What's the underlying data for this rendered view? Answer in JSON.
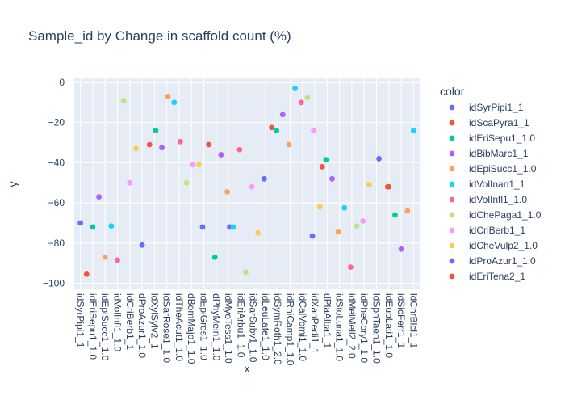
{
  "chart_data": {
    "type": "scatter",
    "title": "Sample_id by Change in scaffold count (%)",
    "xlabel": "x",
    "ylabel": "y",
    "legend_title": "color",
    "legend_position": "right",
    "grid": true,
    "ylim": [
      -103,
      2
    ],
    "yticks": [
      0,
      -20,
      -40,
      -60,
      -80,
      -100
    ],
    "x_tick_labels": [
      "idSyrPipi1_1",
      "idEriSepu1_1.0",
      "idEpiSucc1_1.0",
      "idVolInfl1_1.0",
      "idCriBerb1_1",
      "dProAzur1_1.0",
      "idXylSylv2_1",
      "idSarRose1_1.0",
      "idTheAcut1_1.0",
      "dBomMajo1_1.0",
      "idEpiGros1_1.0",
      "dPhyMein1_1.0",
      "idMyoTess1_1.0",
      "idEriArbu1_1.0",
      "idSarSubv1_1.0",
      "idLeuLate1_1.0",
      "idSymRoth1_2.0",
      "idRhiCamp1_1.0",
      "idCalVomi1_1.0",
      "idXanPedi1_1",
      "dPlaAlba1_1",
      "idStoLuna1_1.0",
      "idMelMell2_2.0",
      "idPheCory1_1.0",
      "idSphTaen1_1.0",
      "idEupLati1_1.0",
      "idSicFerr1_1",
      "idChrBici1_1"
    ],
    "series": [
      {
        "name": "idSyrPipi1_1",
        "color": "#636efa",
        "x": [
          0,
          12.1,
          18.8,
          24.2
        ],
        "y": [
          -70,
          -72,
          -76.5,
          -38
        ]
      },
      {
        "name": "idScaPyra1_1",
        "color": "#EF553B",
        "x": [
          0.5,
          5.6,
          10.4,
          15.5,
          25
        ],
        "y": [
          -95.5,
          -31,
          -31,
          -22.5,
          -52
        ]
      },
      {
        "name": "idEriSepu1_1.0",
        "color": "#00cc96",
        "x": [
          1,
          6.1,
          10.9,
          15.9,
          19.9,
          25.5
        ],
        "y": [
          -72,
          -24,
          -87,
          -24,
          -38.5,
          -66
        ]
      },
      {
        "name": "idBibMarc1_1",
        "color": "#ab63fa",
        "x": [
          1.5,
          6.6,
          11.4,
          16.4,
          20.4,
          26
        ],
        "y": [
          -57,
          -32.5,
          -36,
          -16,
          -48,
          -83
        ]
      },
      {
        "name": "idEpiSucc1_1.0",
        "color": "#FFA15A",
        "x": [
          2,
          7.1,
          11.9,
          16.9,
          20.9,
          26.5
        ],
        "y": [
          -87,
          -7,
          -54.5,
          -31,
          -74.5,
          -64
        ]
      },
      {
        "name": "idVolInan1_1",
        "color": "#19d3f3",
        "x": [
          2.5,
          7.6,
          12.4,
          17.4,
          21.4,
          27
        ],
        "y": [
          -71.5,
          -10,
          -72,
          -3,
          -62.5,
          -24
        ]
      },
      {
        "name": "idVolInfl1_1.0",
        "color": "#FF6692",
        "x": [
          3,
          8.1,
          12.9,
          17.9,
          21.9
        ],
        "y": [
          -88.5,
          -29.5,
          -33.5,
          -10,
          -92
        ]
      },
      {
        "name": "idChePaga1_1.0",
        "color": "#B6E880",
        "x": [
          3.5,
          8.6,
          13.4,
          18.4,
          22.4
        ],
        "y": [
          -9,
          -50,
          -94.5,
          -7.5,
          -71.5
        ]
      },
      {
        "name": "idCriBerb1_1",
        "color": "#FF97FF",
        "x": [
          4,
          9.1,
          13.9,
          18.9,
          22.9
        ],
        "y": [
          -50,
          -41,
          -52,
          -24,
          -69
        ]
      },
      {
        "name": "idCheVulp2_1.0",
        "color": "#FECB52",
        "x": [
          4.5,
          9.6,
          14.4,
          19.4,
          23.4
        ],
        "y": [
          -33,
          -41,
          -75,
          -62,
          -51
        ]
      },
      {
        "name": "idProAzur1_1.0",
        "color": "#636efa",
        "x": [
          5,
          9.9,
          14.9
        ],
        "y": [
          -81,
          -72,
          -48
        ]
      },
      {
        "name": "idEriTena2_1",
        "color": "#EF553B",
        "x": [
          24.9,
          19.6
        ],
        "y": [
          -52,
          -42
        ]
      }
    ]
  }
}
